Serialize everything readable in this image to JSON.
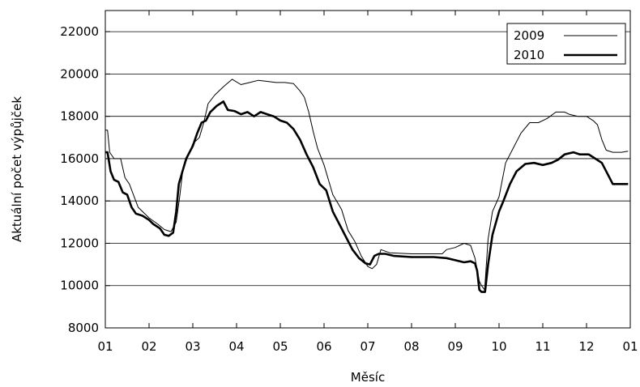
{
  "chart_data": {
    "type": "line",
    "xlabel": "Měsíc",
    "ylabel": "Aktuální počet výpůjček",
    "x_ticks": [
      "01",
      "02",
      "03",
      "04",
      "05",
      "06",
      "07",
      "08",
      "09",
      "10",
      "11",
      "12",
      "01"
    ],
    "xlim": [
      0,
      12
    ],
    "ylim": [
      8000,
      23000
    ],
    "y_ticks": [
      8000,
      10000,
      12000,
      14000,
      16000,
      18000,
      20000,
      22000
    ],
    "y_tick_labels": [
      "8000",
      "10000",
      "12000",
      "14000",
      "16000",
      "18000",
      "20000",
      "22000"
    ],
    "grid": "horizontal",
    "legend_position": "top-right",
    "series": [
      {
        "name": "2009",
        "style": "thin",
        "color": "#000000",
        "points": [
          [
            0.0,
            17350
          ],
          [
            0.05,
            17350
          ],
          [
            0.1,
            16300
          ],
          [
            0.2,
            16000
          ],
          [
            0.35,
            16000
          ],
          [
            0.45,
            15100
          ],
          [
            0.55,
            14800
          ],
          [
            0.75,
            13700
          ],
          [
            1.0,
            13200
          ],
          [
            1.2,
            12900
          ],
          [
            1.35,
            12650
          ],
          [
            1.5,
            12550
          ],
          [
            1.62,
            13000
          ],
          [
            1.7,
            14200
          ],
          [
            1.78,
            15600
          ],
          [
            1.85,
            15900
          ],
          [
            2.0,
            16700
          ],
          [
            2.15,
            17000
          ],
          [
            2.25,
            17700
          ],
          [
            2.35,
            18600
          ],
          [
            2.5,
            19000
          ],
          [
            2.7,
            19400
          ],
          [
            2.9,
            19750
          ],
          [
            3.1,
            19500
          ],
          [
            3.3,
            19600
          ],
          [
            3.5,
            19700
          ],
          [
            3.7,
            19650
          ],
          [
            3.9,
            19600
          ],
          [
            4.1,
            19600
          ],
          [
            4.3,
            19550
          ],
          [
            4.45,
            19200
          ],
          [
            4.55,
            18900
          ],
          [
            4.65,
            18200
          ],
          [
            4.75,
            17300
          ],
          [
            4.85,
            16500
          ],
          [
            5.0,
            15700
          ],
          [
            5.2,
            14300
          ],
          [
            5.4,
            13600
          ],
          [
            5.55,
            12600
          ],
          [
            5.7,
            12100
          ],
          [
            5.85,
            11400
          ],
          [
            6.0,
            10900
          ],
          [
            6.1,
            10800
          ],
          [
            6.2,
            11000
          ],
          [
            6.3,
            11700
          ],
          [
            6.5,
            11550
          ],
          [
            7.0,
            11500
          ],
          [
            7.5,
            11500
          ],
          [
            7.7,
            11500
          ],
          [
            7.8,
            11700
          ],
          [
            8.0,
            11800
          ],
          [
            8.2,
            12000
          ],
          [
            8.35,
            11900
          ],
          [
            8.45,
            11300
          ],
          [
            8.55,
            10200
          ],
          [
            8.6,
            10000
          ],
          [
            8.67,
            9800
          ],
          [
            8.75,
            12200
          ],
          [
            8.85,
            13500
          ],
          [
            9.0,
            14200
          ],
          [
            9.15,
            15800
          ],
          [
            9.3,
            16400
          ],
          [
            9.5,
            17200
          ],
          [
            9.7,
            17700
          ],
          [
            9.9,
            17700
          ],
          [
            10.1,
            17900
          ],
          [
            10.3,
            18200
          ],
          [
            10.5,
            18200
          ],
          [
            10.6,
            18100
          ],
          [
            10.8,
            18000
          ],
          [
            11.0,
            18000
          ],
          [
            11.15,
            17800
          ],
          [
            11.25,
            17600
          ],
          [
            11.35,
            16900
          ],
          [
            11.45,
            16400
          ],
          [
            11.6,
            16300
          ],
          [
            11.8,
            16300
          ],
          [
            11.95,
            16350
          ]
        ]
      },
      {
        "name": "2010",
        "style": "thick",
        "color": "#000000",
        "points": [
          [
            0.0,
            16300
          ],
          [
            0.05,
            16300
          ],
          [
            0.12,
            15400
          ],
          [
            0.2,
            15000
          ],
          [
            0.3,
            14900
          ],
          [
            0.4,
            14400
          ],
          [
            0.5,
            14300
          ],
          [
            0.6,
            13700
          ],
          [
            0.7,
            13400
          ],
          [
            0.85,
            13300
          ],
          [
            1.0,
            13100
          ],
          [
            1.1,
            12900
          ],
          [
            1.25,
            12700
          ],
          [
            1.35,
            12400
          ],
          [
            1.45,
            12350
          ],
          [
            1.55,
            12500
          ],
          [
            1.62,
            13500
          ],
          [
            1.68,
            14800
          ],
          [
            1.75,
            15300
          ],
          [
            1.85,
            16000
          ],
          [
            2.0,
            16600
          ],
          [
            2.1,
            17200
          ],
          [
            2.2,
            17700
          ],
          [
            2.3,
            17800
          ],
          [
            2.4,
            18200
          ],
          [
            2.55,
            18500
          ],
          [
            2.7,
            18700
          ],
          [
            2.8,
            18300
          ],
          [
            2.95,
            18250
          ],
          [
            3.1,
            18100
          ],
          [
            3.25,
            18200
          ],
          [
            3.4,
            18000
          ],
          [
            3.55,
            18200
          ],
          [
            3.7,
            18100
          ],
          [
            3.85,
            18000
          ],
          [
            4.0,
            17800
          ],
          [
            4.15,
            17700
          ],
          [
            4.3,
            17400
          ],
          [
            4.45,
            16900
          ],
          [
            4.6,
            16200
          ],
          [
            4.75,
            15600
          ],
          [
            4.9,
            14800
          ],
          [
            5.05,
            14500
          ],
          [
            5.2,
            13500
          ],
          [
            5.35,
            12900
          ],
          [
            5.5,
            12300
          ],
          [
            5.65,
            11700
          ],
          [
            5.8,
            11300
          ],
          [
            5.95,
            11050
          ],
          [
            6.05,
            11000
          ],
          [
            6.15,
            11400
          ],
          [
            6.25,
            11500
          ],
          [
            6.4,
            11500
          ],
          [
            6.6,
            11400
          ],
          [
            7.0,
            11350
          ],
          [
            7.5,
            11350
          ],
          [
            7.8,
            11300
          ],
          [
            8.0,
            11200
          ],
          [
            8.2,
            11100
          ],
          [
            8.35,
            11150
          ],
          [
            8.45,
            11050
          ],
          [
            8.5,
            10700
          ],
          [
            8.55,
            9800
          ],
          [
            8.6,
            9700
          ],
          [
            8.68,
            9700
          ],
          [
            8.75,
            11000
          ],
          [
            8.85,
            12400
          ],
          [
            9.0,
            13500
          ],
          [
            9.1,
            14000
          ],
          [
            9.25,
            14800
          ],
          [
            9.4,
            15400
          ],
          [
            9.6,
            15750
          ],
          [
            9.8,
            15800
          ],
          [
            10.0,
            15700
          ],
          [
            10.2,
            15800
          ],
          [
            10.35,
            15950
          ],
          [
            10.5,
            16200
          ],
          [
            10.7,
            16300
          ],
          [
            10.85,
            16200
          ],
          [
            11.05,
            16200
          ],
          [
            11.2,
            16000
          ],
          [
            11.35,
            15800
          ],
          [
            11.5,
            15200
          ],
          [
            11.6,
            14800
          ],
          [
            11.8,
            14800
          ],
          [
            11.95,
            14800
          ]
        ]
      }
    ]
  }
}
